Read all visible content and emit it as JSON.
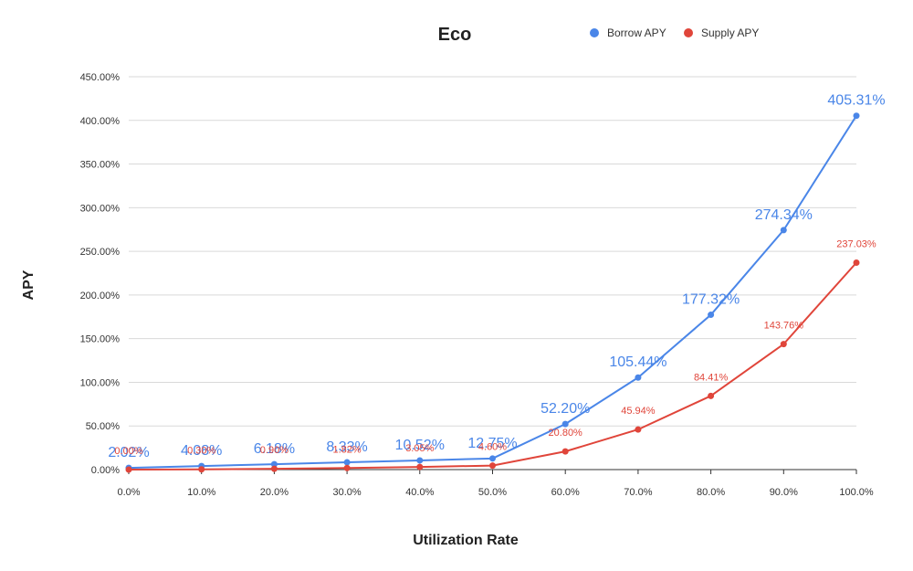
{
  "chart_data": {
    "type": "line",
    "title": "Eco",
    "xlabel": "Utilization Rate",
    "ylabel": "APY",
    "x": [
      0,
      10,
      20,
      30,
      40,
      50,
      60,
      70,
      80,
      90,
      100
    ],
    "x_tick_labels": [
      "0.0%",
      "10.0%",
      "20.0%",
      "30.0%",
      "40.0%",
      "50.0%",
      "60.0%",
      "70.0%",
      "80.0%",
      "90.0%",
      "100.0%"
    ],
    "ylim": [
      0,
      450
    ],
    "y_ticks": [
      0,
      50,
      100,
      150,
      200,
      250,
      300,
      350,
      400,
      450
    ],
    "y_tick_labels": [
      "0.00%",
      "50.00%",
      "100.00%",
      "150.00%",
      "200.00%",
      "250.00%",
      "300.00%",
      "350.00%",
      "400.00%",
      "450.00%"
    ],
    "grid": true,
    "legend_position": "top-right",
    "series": [
      {
        "name": "Borrow APY",
        "color": "#4a86e8",
        "values": [
          2.02,
          4.08,
          6.18,
          8.33,
          10.52,
          12.75,
          52.2,
          105.44,
          177.32,
          274.34,
          405.31
        ],
        "labels": [
          "2.02%",
          "4.08%",
          "6.18%",
          "8.33%",
          "10.52%",
          "12.75%",
          "52.20%",
          "105.44%",
          "177.32%",
          "274.34%",
          "405.31%"
        ]
      },
      {
        "name": "Supply APY",
        "color": "#e0453a",
        "values": [
          0.0,
          0.3,
          0.9,
          1.82,
          3.05,
          4.6,
          20.8,
          45.94,
          84.41,
          143.76,
          237.03
        ],
        "labels": [
          "0.00%",
          "0.30%",
          "0.90%",
          "1.82%",
          "3.05%",
          "4.60%",
          "20.80%",
          "45.94%",
          "84.41%",
          "143.76%",
          "237.03%"
        ]
      }
    ]
  }
}
